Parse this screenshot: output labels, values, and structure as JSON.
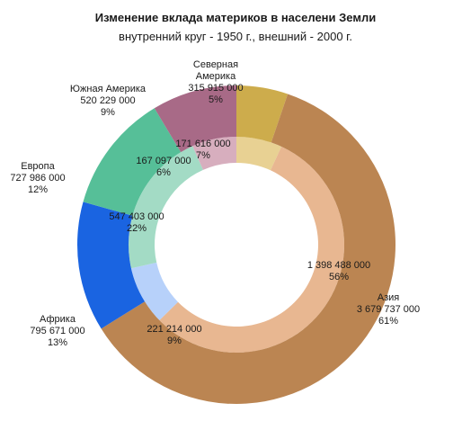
{
  "chart_data": {
    "type": "pie",
    "title": "Изменение вклада материков в населени  Земли",
    "subtitle": "внутренний круг - 1950 г., внешний - 2000 г.",
    "categories": [
      "Северная Америка",
      "Азия",
      "Африка",
      "Европа",
      "Южная Америка"
    ],
    "colors": {
      "outer": [
        "#cdac4c",
        "#bb8552",
        "#1a64e1",
        "#56bf98",
        "#a86a87"
      ],
      "inner": [
        "#e8d193",
        "#e8b791",
        "#b7d1fa",
        "#a3dbc5",
        "#d7aebe"
      ]
    },
    "series": [
      {
        "ring": "inner",
        "values": [
          171616000,
          1398488000,
          221214000,
          547403000,
          167097000
        ],
        "labels": [
          [
            "171 616 000",
            "7%"
          ],
          [
            "1 398 488 000",
            "56%"
          ],
          [
            "221 214 000",
            "9%"
          ],
          [
            "547 403 000",
            "22%"
          ],
          [
            "167 097 000",
            "6%"
          ]
        ]
      },
      {
        "ring": "outer",
        "values": [
          315915000,
          3679737000,
          795671000,
          727986000,
          520229000
        ],
        "labels": [
          [
            "Северная",
            "Америка",
            "315 915 000",
            "5%"
          ],
          [
            "Азия",
            "3 679 737 000",
            "61%"
          ],
          [
            "Африка",
            "795 671 000",
            "13%"
          ],
          [
            "Европа",
            "727 986 000",
            "12%"
          ],
          [
            "Южная Америка",
            "520 229 000",
            "9%"
          ]
        ]
      }
    ]
  }
}
